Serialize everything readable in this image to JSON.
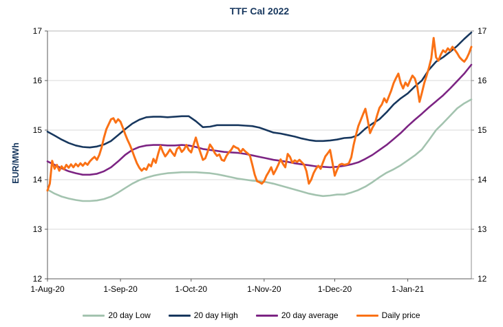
{
  "title": "TTF Cal 2022",
  "y_axis_title": "EUR/MWh",
  "colors": {
    "title_text": "#17375e",
    "y_axis_title_text": "#17375e",
    "tick_text": "#000000",
    "grid": "#d9d9d9",
    "frame_top": "#b7b7b7",
    "frame_right": "#8c8c8c",
    "frame_left": "#595959",
    "frame_bottom": "#595959",
    "background": "#ffffff"
  },
  "chart_data": {
    "type": "line",
    "title": "TTF Cal 2022",
    "xlabel": "",
    "ylabel": "EUR/MWh",
    "ylim": [
      12,
      17
    ],
    "y_ticks": [
      12,
      13,
      14,
      15,
      16,
      17
    ],
    "y_axis_sides": [
      "left",
      "right"
    ],
    "grid": "horizontal",
    "legend_position": "bottom",
    "x_unit": "days since 1-Aug-20",
    "x_range": [
      0,
      180
    ],
    "x_ticks": [
      {
        "day": 0,
        "label": "1-Aug-20"
      },
      {
        "day": 31,
        "label": "1-Sep-20"
      },
      {
        "day": 61,
        "label": "1-Oct-20"
      },
      {
        "day": 92,
        "label": "1-Nov-20"
      },
      {
        "day": 122,
        "label": "1-Dec-20"
      },
      {
        "day": 153,
        "label": "1-Jan-21"
      }
    ],
    "series": [
      {
        "name": "20 day Low",
        "color": "#a3c3af",
        "line_width": 2.6,
        "x_step": 3,
        "values": [
          13.8,
          13.72,
          13.66,
          13.62,
          13.59,
          13.57,
          13.57,
          13.58,
          13.61,
          13.66,
          13.74,
          13.83,
          13.92,
          13.99,
          14.04,
          14.08,
          14.11,
          14.13,
          14.14,
          14.15,
          14.15,
          14.15,
          14.14,
          14.13,
          14.11,
          14.08,
          14.05,
          14.02,
          14.0,
          13.98,
          13.97,
          13.95,
          13.92,
          13.88,
          13.84,
          13.8,
          13.76,
          13.72,
          13.69,
          13.67,
          13.68,
          13.7,
          13.7,
          13.74,
          13.79,
          13.86,
          13.95,
          14.05,
          14.14,
          14.21,
          14.29,
          14.39,
          14.49,
          14.61,
          14.8,
          15.0,
          15.14,
          15.29,
          15.44,
          15.54,
          15.62
        ]
      },
      {
        "name": "20 day High",
        "color": "#17375e",
        "line_width": 2.6,
        "x_step": 3,
        "values": [
          14.97,
          14.89,
          14.81,
          14.74,
          14.69,
          14.66,
          14.65,
          14.67,
          14.71,
          14.78,
          14.9,
          15.02,
          15.13,
          15.21,
          15.26,
          15.27,
          15.27,
          15.26,
          15.27,
          15.28,
          15.28,
          15.18,
          15.06,
          15.07,
          15.1,
          15.1,
          15.1,
          15.1,
          15.09,
          15.08,
          15.05,
          15.0,
          14.95,
          14.93,
          14.9,
          14.87,
          14.83,
          14.8,
          14.78,
          14.78,
          14.79,
          14.81,
          14.84,
          14.85,
          14.9,
          15.03,
          15.13,
          15.22,
          15.36,
          15.52,
          15.64,
          15.74,
          15.88,
          16.0,
          16.22,
          16.38,
          16.47,
          16.58,
          16.7,
          16.84,
          16.97
        ]
      },
      {
        "name": "20 day average",
        "color": "#7c2483",
        "line_width": 2.6,
        "x_step": 3,
        "values": [
          14.37,
          14.3,
          14.23,
          14.17,
          14.13,
          14.1,
          14.1,
          14.12,
          14.17,
          14.25,
          14.37,
          14.5,
          14.6,
          14.66,
          14.69,
          14.7,
          14.7,
          14.69,
          14.69,
          14.7,
          14.69,
          14.66,
          14.62,
          14.6,
          14.58,
          14.56,
          14.55,
          14.54,
          14.52,
          14.49,
          14.46,
          14.43,
          14.4,
          14.38,
          14.36,
          14.33,
          14.31,
          14.29,
          14.27,
          14.26,
          14.25,
          14.26,
          14.28,
          14.31,
          14.35,
          14.42,
          14.5,
          14.6,
          14.7,
          14.82,
          14.94,
          15.08,
          15.21,
          15.33,
          15.46,
          15.58,
          15.7,
          15.84,
          15.99,
          16.14,
          16.32
        ]
      },
      {
        "name": "Daily price",
        "color": "#fa7115",
        "line_width": 3,
        "x_step": 1,
        "values": [
          13.78,
          13.92,
          14.38,
          14.22,
          14.3,
          14.18,
          14.27,
          14.21,
          14.3,
          14.24,
          14.31,
          14.25,
          14.32,
          14.27,
          14.33,
          14.28,
          14.34,
          14.3,
          14.37,
          14.42,
          14.46,
          14.4,
          14.5,
          14.65,
          14.85,
          15.02,
          15.12,
          15.22,
          15.24,
          15.15,
          15.22,
          15.17,
          15.05,
          14.92,
          14.8,
          14.7,
          14.58,
          14.45,
          14.33,
          14.24,
          14.18,
          14.23,
          14.2,
          14.31,
          14.27,
          14.42,
          14.34,
          14.52,
          14.68,
          14.56,
          14.47,
          14.53,
          14.61,
          14.54,
          14.48,
          14.62,
          14.66,
          14.56,
          14.61,
          14.7,
          14.6,
          14.55,
          14.7,
          14.85,
          14.68,
          14.54,
          14.4,
          14.43,
          14.56,
          14.71,
          14.64,
          14.54,
          14.48,
          14.51,
          14.4,
          14.38,
          14.48,
          14.55,
          14.6,
          14.68,
          14.65,
          14.63,
          14.55,
          14.62,
          14.57,
          14.53,
          14.48,
          14.3,
          14.1,
          13.97,
          13.95,
          13.92,
          13.97,
          14.08,
          14.16,
          14.25,
          14.11,
          14.2,
          14.3,
          14.41,
          14.32,
          14.25,
          14.52,
          14.46,
          14.34,
          14.39,
          14.36,
          14.4,
          14.35,
          14.3,
          14.17,
          13.92,
          14.0,
          14.13,
          14.22,
          14.28,
          14.22,
          14.35,
          14.47,
          14.53,
          14.6,
          14.35,
          14.08,
          14.2,
          14.3,
          14.32,
          14.3,
          14.31,
          14.33,
          14.45,
          14.7,
          14.9,
          15.08,
          15.2,
          15.32,
          15.43,
          15.2,
          14.94,
          15.05,
          15.13,
          15.3,
          15.45,
          15.52,
          15.64,
          15.56,
          15.68,
          15.8,
          15.95,
          16.05,
          16.14,
          15.95,
          15.84,
          15.96,
          15.89,
          16.0,
          16.1,
          16.04,
          15.88,
          15.57,
          15.75,
          15.95,
          16.1,
          16.26,
          16.45,
          16.86,
          16.47,
          16.4,
          16.52,
          16.61,
          16.57,
          16.65,
          16.6,
          16.68,
          16.62,
          16.55,
          16.47,
          16.42,
          16.38,
          16.45,
          16.55,
          16.68
        ]
      }
    ]
  },
  "legend": {
    "items": [
      "20 day Low",
      "20 day High",
      "20 day average",
      "Daily price"
    ]
  }
}
